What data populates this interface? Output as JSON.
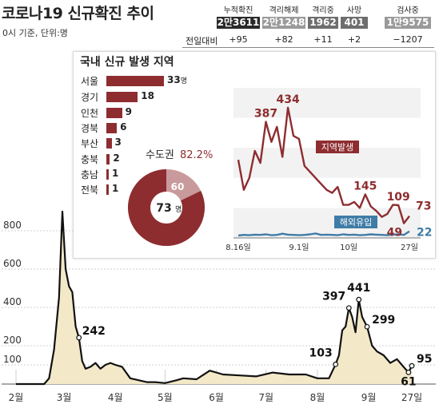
{
  "header": {
    "title": "코로나19 신규확진 추이",
    "subtitle": "0시 기준, 단위:명",
    "delta_label": "전일대비"
  },
  "stats": [
    {
      "label": "누적확진",
      "value": "2만3611",
      "delta": "+95",
      "color": "#2a2a2a"
    },
    {
      "label": "격리해제",
      "value": "2만1248",
      "delta": "+82",
      "color": "#9a9a9a"
    },
    {
      "label": "격리중",
      "value": "1962",
      "delta": "+11",
      "color": "#6e6e6e"
    },
    {
      "label": "사망",
      "value": "401",
      "delta": "+2",
      "color": "#6e6e6e"
    },
    {
      "label": "검사중",
      "value": "1만9575",
      "delta": "−1207",
      "color": "#9a9a9a"
    }
  ],
  "colors": {
    "area_fill": "#f3e9c9",
    "line": "#111111",
    "bar": "#8e2d30",
    "local_line": "#8e2d30",
    "import_line": "#3f7ca6",
    "import_label_bg": "#3f7ca6"
  },
  "chart_data": [
    {
      "type": "area",
      "ylim": [
        0,
        1000
      ],
      "yticks": [
        "100",
        "200",
        "400",
        "600",
        "800"
      ],
      "xticks": [
        "2월",
        "3월",
        "4월",
        "5월",
        "6월",
        "7월",
        "8월",
        "9월",
        "27일"
      ],
      "annotations": [
        "242",
        "103",
        "397",
        "441",
        "299",
        "61",
        "95"
      ],
      "series": [
        {
          "x": [
            "2월 1일",
            "2월 18일",
            "2월 21일",
            "2월 24일",
            "2월 27일",
            "2월 29일",
            "3월 2일",
            "3월 4일",
            "3월 6일",
            "3월 8일",
            "3월 10일",
            "3월 12일",
            "3월 14일",
            "3월 17일",
            "3월 20일",
            "3월 23일",
            "3월 26일",
            "3월 29일",
            "4월 1일",
            "4월 5일",
            "4월 10일",
            "4월 15일",
            "4월 20일",
            "4월 25일",
            "5월 1일",
            "5월 8일",
            "5월 12일",
            "5월 20일",
            "5월 28일",
            "6월 5일",
            "6월 15일",
            "6월 25일",
            "7월 5일",
            "7월 15일",
            "7월 25일",
            "8월 1일",
            "8월 8일",
            "8월 12일",
            "8월 14일",
            "8월 16일",
            "8월 18일",
            "8월 20일",
            "8월 22일",
            "8월 24일",
            "8월 26일",
            "8월 28일",
            "8월 31일",
            "9월 3일",
            "9월 6일",
            "9월 10일",
            "9월 14일",
            "9월 18일",
            "9월 21일",
            "9월 23일",
            "9월 25일",
            "9월 27일"
          ],
          "values": [
            0,
            0,
            30,
            180,
            450,
            900,
            600,
            510,
            480,
            300,
            242,
            120,
            80,
            90,
            110,
            80,
            100,
            110,
            100,
            90,
            30,
            20,
            10,
            10,
            5,
            20,
            30,
            25,
            70,
            50,
            45,
            40,
            60,
            50,
            50,
            30,
            30,
            103,
            150,
            280,
            300,
            397,
            350,
            270,
            441,
            350,
            299,
            200,
            170,
            150,
            110,
            130,
            100,
            80,
            61,
            95
          ]
        }
      ]
    },
    {
      "type": "bar",
      "title": "국내 신규 발생 지역",
      "categories": [
        "서울",
        "경기",
        "인천",
        "경북",
        "부산",
        "충북",
        "충남",
        "전북"
      ],
      "values": [
        33,
        18,
        9,
        6,
        3,
        2,
        1,
        1
      ],
      "unit_label": "명"
    },
    {
      "type": "pie",
      "label": "수도권",
      "percent_label": "82.2%",
      "percent": 82.2,
      "slice_value": 60,
      "total": 73,
      "center_unit": "명"
    },
    {
      "type": "line",
      "xticks": [
        "8.16일",
        "9.1일",
        "10일",
        "27일"
      ],
      "series": [
        {
          "name": "지역발생",
          "annotations": [
            "387",
            "434",
            "145",
            "109",
            "49",
            "73"
          ],
          "values": [
            260,
            160,
            200,
            290,
            250,
            387,
            320,
            370,
            270,
            434,
            340,
            330,
            240,
            220,
            200,
            180,
            160,
            150,
            170,
            110,
            110,
            120,
            100,
            145,
            105,
            90,
            70,
            80,
            110,
            109,
            49,
            73
          ]
        },
        {
          "name": "해외유입",
          "annotations": [
            "22"
          ],
          "values": [
            8,
            10,
            9,
            11,
            10,
            12,
            9,
            10,
            14,
            11,
            10,
            9,
            10,
            12,
            15,
            10,
            11,
            10,
            9,
            12,
            10,
            11,
            9,
            10,
            12,
            11,
            10,
            9,
            11,
            12,
            10,
            22
          ]
        }
      ]
    }
  ]
}
